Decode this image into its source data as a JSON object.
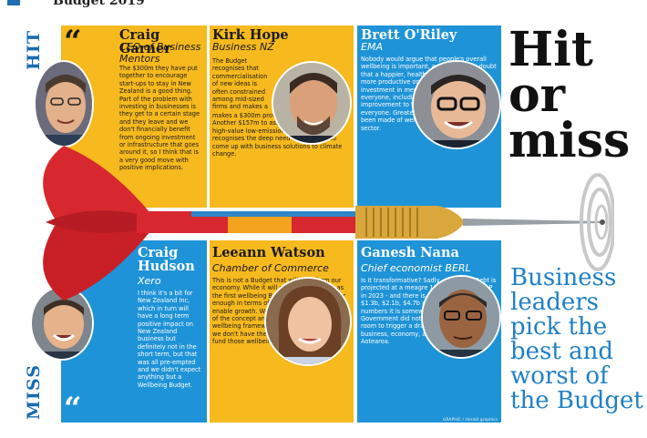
{
  "header": {
    "ghost_text": "Budget 2019"
  },
  "labels": {
    "hit": "HIT",
    "miss": "MISS"
  },
  "headline": {
    "title": "Hit or miss",
    "subtitle": "Business leaders pick the best and worst of the Budget"
  },
  "hits": [
    {
      "name": "Craig Garner",
      "role": "CEO of Business Mentors",
      "quote": "The $300m they have put together to encourage start-ups to stay in New Zealand is a good thing. Part of the problem with investing in businesses is they get to a certain stage and they leave and we don't financially benefit from ongoing investment or infrastructure that goes around it, so I think that is a very good move with positive implications."
    },
    {
      "name": "Kirk Hope",
      "role": "Business NZ",
      "quote": "The Budget recognises that commercialisation of new ideas is often constrained among mid-sized firms and makes a $300m provision to support this. Another $157m to assist firms in developing high-value low-emissions products recognises the deep need for research to come up with business solutions to climate change."
    },
    {
      "name": "Brett O'Riley",
      "role": "EMA",
      "quote": "Nobody would argue that people's overall wellbeing is important, and there is no doubt that a happier, healthier community is a more productive one. We welcome the investment in mental health as it is a cost to everyone, including business, and any improvement to this area would benefit everyone. Greater recognition could have been made of wellbeing in the business sector."
    }
  ],
  "misses": [
    {
      "name": "Craig Hudson",
      "role": "Xero",
      "quote": "I think it's a bit for New Zealand Inc, which in turn will have a long term positive impact on New Zealand business but definitely not in the short term, but that was all pre-empted and we didn't expect anything but a Wellbeing Budget."
    },
    {
      "name": "Leeann Watson",
      "role": "Chamber of Commerce",
      "quote": "This is not a Budget that will transform our economy. While it will go down in history as the first wellbeing Budget, it does not go far enough in terms of supporting businesses to enable growth. We are generally supportive of the concept and impetus behind the wellbeing framework, but it doesn't work if we don't have the financial wherewithal to fund those wellbeing initiatives."
    },
    {
      "name": "Ganesh Nana",
      "role": "Chief economist BERL",
      "quote": "Is it transformative? Sadly, not really. Debt is projected at a meagre 18.7 per cent of GDP in 2023 - and there is a surplus track of $1.3b, $2.1b, $4.7b and $6.1b. With these numbers it is somewhat surprising that this Government did not use more of this elbow room to trigger a dramatic transformation in business, economy, and communities across Aotearoa."
    }
  ],
  "credit": "GRAPHIC / Herald graphics",
  "colors": {
    "yellow": "#f6b91e",
    "blue": "#1f93d7",
    "accent": "#1f80c6",
    "dart_red": "#d7282f",
    "dart_gold": "#d9a73c"
  },
  "icons": {
    "quote": "open-quote-icon",
    "dart": "dart-icon",
    "target": "target-icon"
  }
}
